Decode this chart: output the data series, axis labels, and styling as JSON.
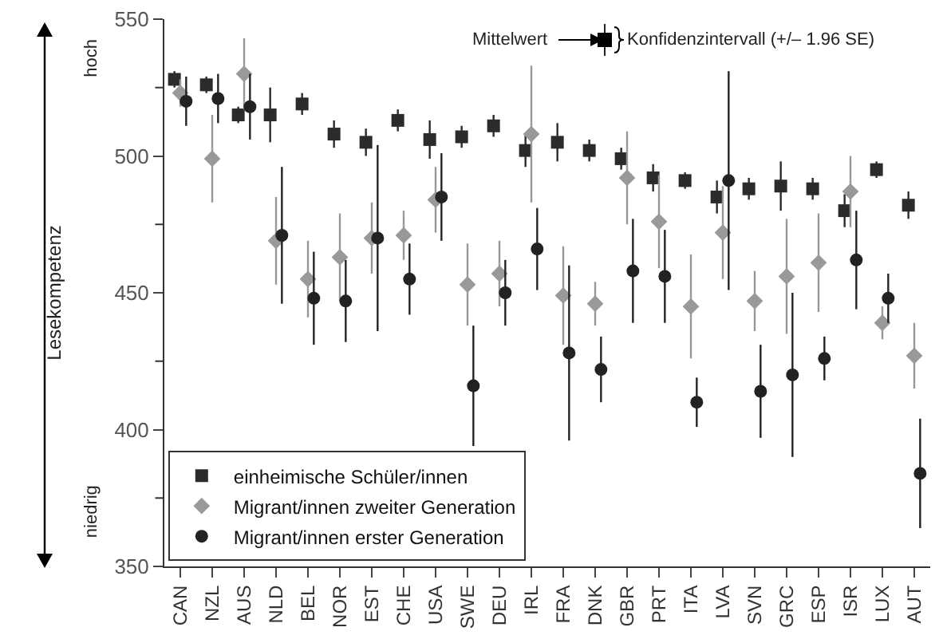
{
  "chart_data": {
    "type": "scatter",
    "categories": [
      "CAN",
      "NZL",
      "AUS",
      "NLD",
      "BEL",
      "NOR",
      "EST",
      "CHE",
      "USA",
      "SWE",
      "DEU",
      "IRL",
      "FRA",
      "DNK",
      "GBR",
      "PRT",
      "ITA",
      "LVA",
      "SVN",
      "GRC",
      "ESP",
      "ISR",
      "LUX",
      "AUT"
    ],
    "ylabel": "Lesekompetenz",
    "ylim": [
      350,
      550
    ],
    "yticks": [
      350,
      400,
      450,
      500,
      550
    ],
    "legend": "bottom left",
    "grid": false,
    "annotations": [
      "Mittelwert",
      "Konfidenzintervall (+/– 1.96 SE)",
      "hoch",
      "niedrig"
    ],
    "series": [
      {
        "name": "einheimische Schüler/innen",
        "color": "#2b2b2b",
        "marker": "square",
        "values": [
          528,
          526,
          515,
          515,
          519,
          508,
          505,
          513,
          506,
          507,
          511,
          502,
          505,
          502,
          499,
          492,
          491,
          485,
          488,
          489,
          488,
          480,
          495,
          482
        ],
        "errors": [
          3,
          3,
          3,
          10,
          4,
          5,
          5,
          4,
          7,
          4,
          4,
          6,
          7,
          4,
          4,
          5,
          3,
          6,
          4,
          9,
          4,
          6,
          3,
          5
        ]
      },
      {
        "name": "Migrant/innen zweiter Generation",
        "color": "#999999",
        "marker": "diamond",
        "values": [
          523,
          499,
          530,
          469,
          455,
          463,
          470,
          471,
          484,
          453,
          457,
          508,
          449,
          446,
          492,
          476,
          445,
          472,
          447,
          456,
          461,
          487,
          439,
          427
        ],
        "errors": [
          5,
          16,
          13,
          16,
          14,
          16,
          13,
          9,
          12,
          15,
          12,
          25,
          18,
          8,
          17,
          17,
          19,
          17,
          11,
          21,
          18,
          13,
          6,
          12
        ]
      },
      {
        "name": "Migrant/innen erster Generation",
        "color": "#222222",
        "marker": "circle",
        "values": [
          520,
          521,
          518,
          471,
          448,
          447,
          470,
          455,
          485,
          416,
          450,
          466,
          428,
          422,
          458,
          456,
          410,
          491,
          414,
          420,
          426,
          462,
          448,
          384
        ],
        "errors": [
          9,
          9,
          12,
          25,
          17,
          15,
          34,
          13,
          16,
          22,
          12,
          15,
          32,
          12,
          19,
          17,
          9,
          40,
          17,
          30,
          8,
          18,
          9,
          20
        ]
      }
    ]
  }
}
